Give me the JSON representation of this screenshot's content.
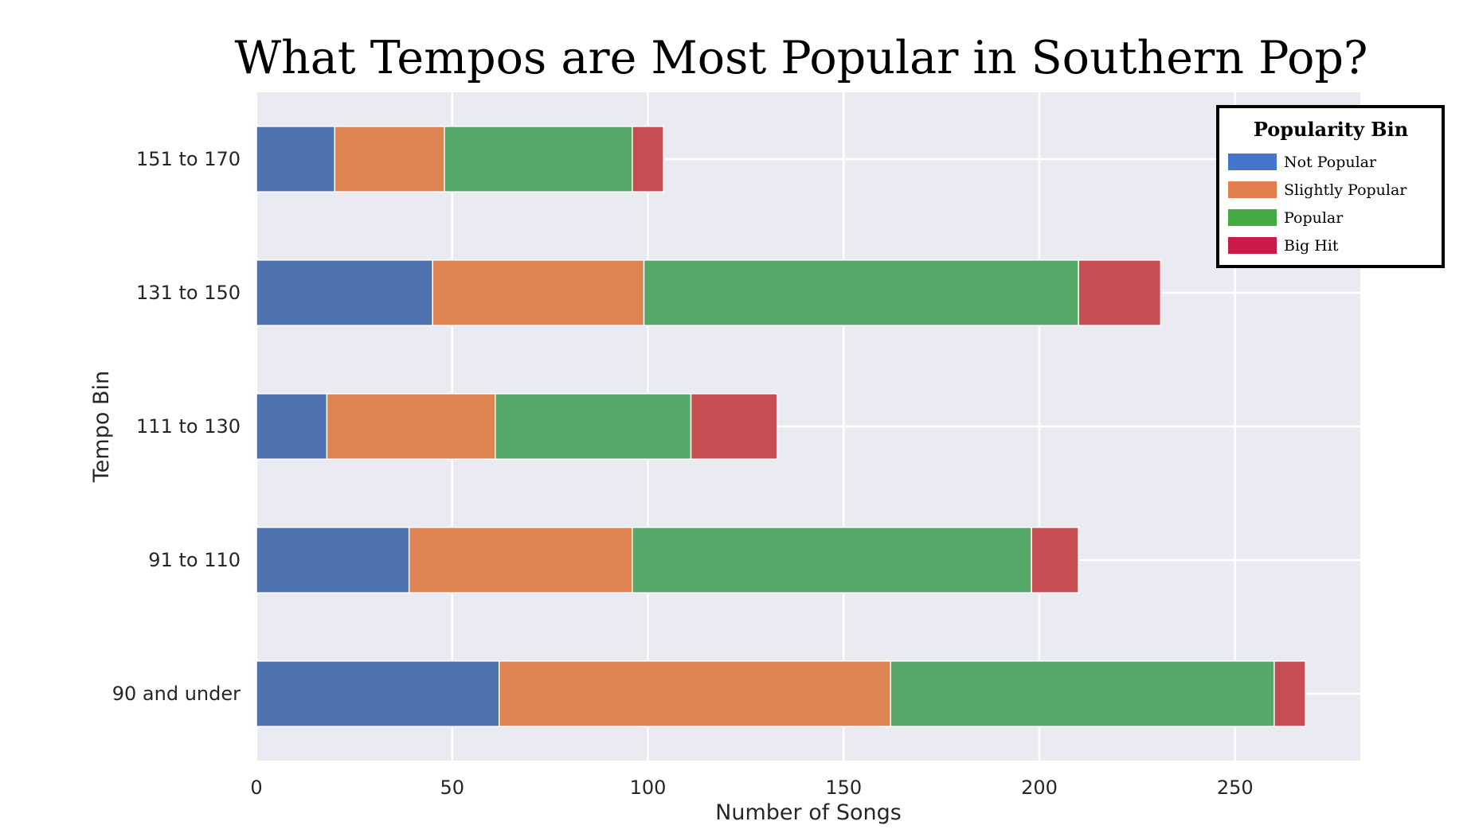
{
  "chart_data": {
    "type": "bar",
    "orientation": "horizontal",
    "stacked": true,
    "title": "What Tempos are Most Popular in Southern Pop?",
    "xlabel": "Number of Songs",
    "ylabel": "Tempo Bin",
    "xlim": [
      0,
      282
    ],
    "x_ticks": [
      0,
      50,
      100,
      150,
      200,
      250
    ],
    "grid": true,
    "categories": [
      "151 to 170",
      "131 to 150",
      "111 to 130",
      "91 to 110",
      "90 and under"
    ],
    "series": [
      {
        "name": "Not Popular",
        "color": "#4c72b0",
        "values": [
          20,
          45,
          18,
          39,
          62
        ]
      },
      {
        "name": "Slightly Popular",
        "color": "#dd8452",
        "values": [
          28,
          54,
          43,
          57,
          100
        ]
      },
      {
        "name": "Popular",
        "color": "#55a868",
        "values": [
          48,
          111,
          50,
          102,
          98
        ]
      },
      {
        "name": "Big Hit",
        "color": "#c44e52",
        "values": [
          8,
          21,
          22,
          12,
          8
        ]
      }
    ],
    "legend": {
      "title": "Popularity Bin",
      "placement": "top-right",
      "swatch_colors": [
        "#4477cc",
        "#e07e4e",
        "#44aa44",
        "#cc1a4a"
      ]
    }
  }
}
